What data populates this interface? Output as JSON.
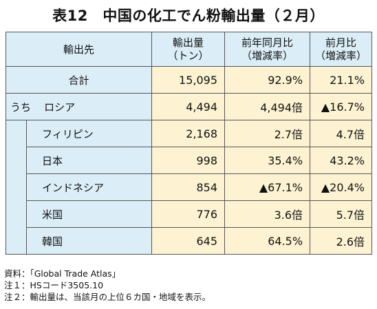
{
  "title": "表12　中国の化工でん粉輸出量（２月）",
  "header": {
    "destination": "輸出先",
    "volume_line1": "輸出量",
    "volume_line2": "（トン）",
    "yoy_line1": "前年同月比",
    "yoy_line2": "（増減率）",
    "mom_line1": "前月比",
    "mom_line2": "（増減率）"
  },
  "total": {
    "label": "合計",
    "volume": "15,095",
    "yoy": "92.9%",
    "mom": "21.1%"
  },
  "uchi": "うち",
  "rows": [
    {
      "label": "ロシア",
      "volume": "4,494",
      "yoy": "4,494倍",
      "mom": "▲16.7%"
    },
    {
      "label": "フィリピン",
      "volume": "2,168",
      "yoy": "2.7倍",
      "mom": "4.7倍"
    },
    {
      "label": "日本",
      "volume": "998",
      "yoy": "35.4%",
      "mom": "43.2%"
    },
    {
      "label": "インドネシア",
      "volume": "854",
      "yoy": "▲67.1%",
      "mom": "▲20.4%"
    },
    {
      "label": "米国",
      "volume": "776",
      "yoy": "3.6倍",
      "mom": "5.7倍"
    },
    {
      "label": "韓国",
      "volume": "645",
      "yoy": "64.5%",
      "mom": "2.6倍"
    }
  ],
  "notes": [
    "資料：「Global Trade Atlas」",
    "注１：HSコード3505.10",
    "注２：輸出量は、当該月の上位６カ国・地域を表示。"
  ]
}
